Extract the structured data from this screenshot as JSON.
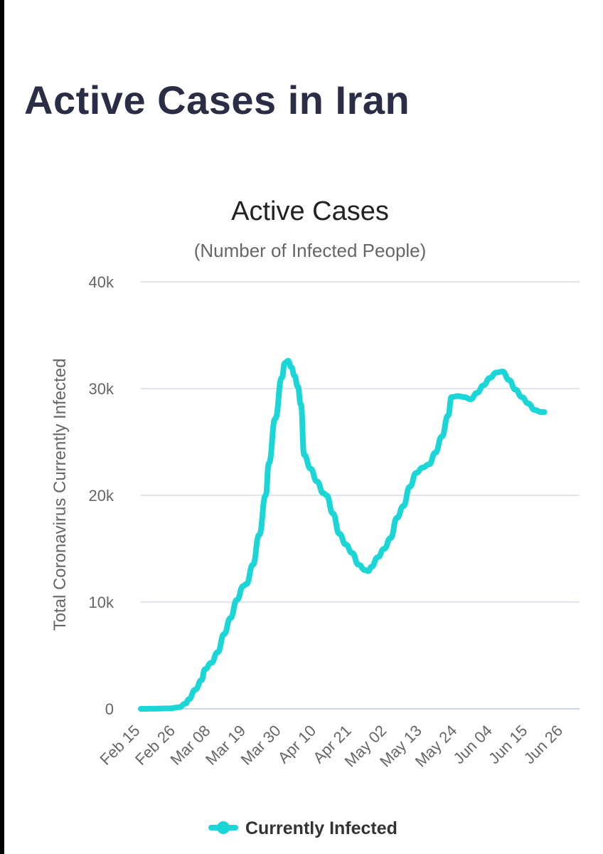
{
  "page": {
    "title": "Active Cases in Iran"
  },
  "colors": {
    "series": "#1ad6d6",
    "grid": "#d8dde6",
    "axis": "#ccd6eb",
    "title": "#2a2d45"
  },
  "chart_data": {
    "type": "line",
    "title": "Active Cases",
    "subtitle": "(Number of Infected People)",
    "xlabel": "",
    "ylabel": "Total Coronavirus Currently Infected",
    "ylim": [
      0,
      40000
    ],
    "yticks": [
      0,
      10000,
      20000,
      30000,
      40000
    ],
    "ytick_labels": [
      "0",
      "10k",
      "20k",
      "30k",
      "40k"
    ],
    "grid": true,
    "legend": "bottom-center",
    "x_tick_labels": [
      "Feb 15",
      "Feb 26",
      "Mar 08",
      "Mar 19",
      "Mar 30",
      "Apr 10",
      "Apr 21",
      "May 02",
      "May 13",
      "May 24",
      "Jun 04",
      "Jun 15",
      "Jun 26"
    ],
    "x_tick_days": [
      0,
      11,
      22,
      33,
      44,
      55,
      66,
      77,
      88,
      99,
      110,
      121,
      132
    ],
    "x_max_day": 137,
    "series": [
      {
        "name": "Currently Infected",
        "color": "#1ad6d6",
        "points": [
          [
            0,
            0
          ],
          [
            5,
            20
          ],
          [
            9,
            40
          ],
          [
            12,
            150
          ],
          [
            14,
            500
          ],
          [
            15,
            900
          ],
          [
            17,
            1800
          ],
          [
            19,
            2700
          ],
          [
            20,
            3700
          ],
          [
            22,
            4300
          ],
          [
            24,
            5300
          ],
          [
            26,
            7000
          ],
          [
            28,
            8500
          ],
          [
            30,
            10200
          ],
          [
            32,
            11500
          ],
          [
            33,
            11700
          ],
          [
            35,
            13500
          ],
          [
            37,
            16300
          ],
          [
            39,
            20000
          ],
          [
            40,
            23000
          ],
          [
            42,
            27200
          ],
          [
            44,
            31000
          ],
          [
            45,
            32400
          ],
          [
            46,
            32600
          ],
          [
            47,
            32000
          ],
          [
            48,
            31200
          ],
          [
            49,
            30200
          ],
          [
            50,
            28500
          ],
          [
            51,
            23800
          ],
          [
            53,
            22500
          ],
          [
            55,
            21300
          ],
          [
            57,
            20200
          ],
          [
            58,
            20000
          ],
          [
            60,
            18300
          ],
          [
            62,
            16400
          ],
          [
            64,
            15400
          ],
          [
            66,
            14600
          ],
          [
            68,
            13500
          ],
          [
            70,
            13000
          ],
          [
            71,
            12900
          ],
          [
            72,
            13300
          ],
          [
            74,
            14200
          ],
          [
            76,
            15000
          ],
          [
            78,
            16000
          ],
          [
            80,
            17900
          ],
          [
            82,
            19000
          ],
          [
            84,
            20800
          ],
          [
            86,
            22100
          ],
          [
            88,
            22600
          ],
          [
            90,
            22900
          ],
          [
            92,
            24000
          ],
          [
            94,
            25500
          ],
          [
            96,
            27500
          ],
          [
            97,
            29200
          ],
          [
            99,
            29300
          ],
          [
            101,
            29200
          ],
          [
            103,
            29000
          ],
          [
            105,
            29600
          ],
          [
            107,
            30300
          ],
          [
            109,
            31000
          ],
          [
            111,
            31500
          ],
          [
            113,
            31600
          ],
          [
            115,
            30800
          ],
          [
            117,
            29900
          ],
          [
            119,
            29200
          ],
          [
            121,
            28600
          ],
          [
            123,
            28000
          ],
          [
            125,
            27800
          ],
          [
            126,
            27800
          ]
        ]
      }
    ]
  }
}
